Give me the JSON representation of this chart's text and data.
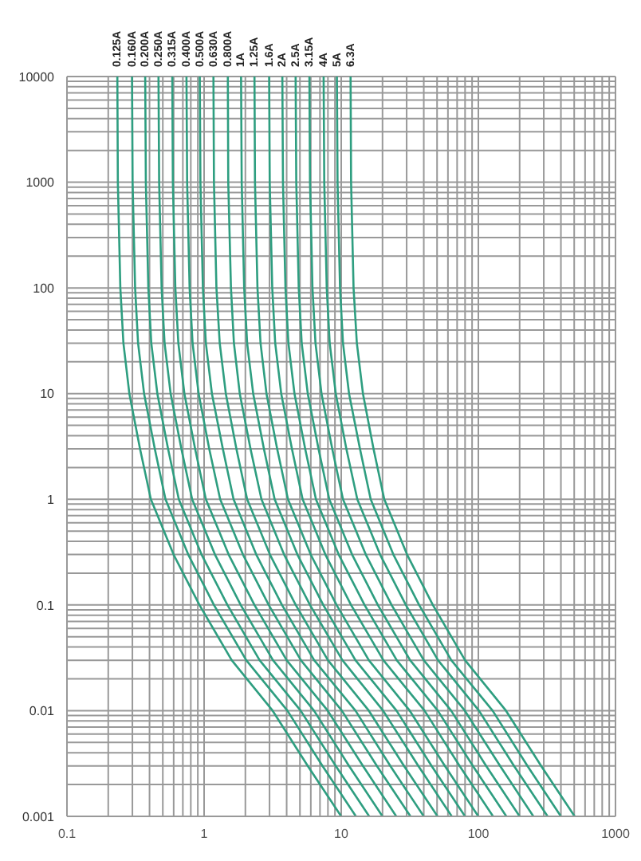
{
  "chart_data": {
    "type": "line",
    "log": "xy",
    "grid": true,
    "xlim": [
      0.1,
      1000
    ],
    "ylim": [
      0.001,
      10000
    ],
    "xticks": [
      0.1,
      {
        "value": 0.2,
        "label": null
      },
      {
        "value": 0.3,
        "label": null
      },
      {
        "value": 0.4,
        "label": null
      },
      {
        "value": 0.5,
        "label": null
      },
      {
        "value": 0.6,
        "label": null
      },
      {
        "value": 0.7,
        "label": null
      },
      {
        "value": 0.8,
        "label": null
      },
      {
        "value": 0.9,
        "label": null
      },
      1,
      {
        "value": 2,
        "label": null
      },
      {
        "value": 3,
        "label": null
      },
      {
        "value": 4,
        "label": null
      },
      {
        "value": 5,
        "label": null
      },
      {
        "value": 6,
        "label": null
      },
      {
        "value": 7,
        "label": null
      },
      {
        "value": 8,
        "label": null
      },
      {
        "value": 9,
        "label": null
      },
      10,
      {
        "value": 20,
        "label": null
      },
      {
        "value": 30,
        "label": null
      },
      {
        "value": 40,
        "label": null
      },
      {
        "value": 50,
        "label": null
      },
      {
        "value": 60,
        "label": null
      },
      {
        "value": 70,
        "label": null
      },
      {
        "value": 80,
        "label": null
      },
      {
        "value": 90,
        "label": null
      },
      100,
      {
        "value": 200,
        "label": null
      },
      {
        "value": 300,
        "label": null
      },
      {
        "value": 400,
        "label": null
      },
      {
        "value": 500,
        "label": null
      },
      {
        "value": 600,
        "label": null
      },
      {
        "value": 700,
        "label": null
      },
      {
        "value": 800,
        "label": null
      },
      {
        "value": 900,
        "label": null
      },
      1000
    ],
    "yticks": [
      0.001,
      {
        "value": 0.002,
        "label": null
      },
      {
        "value": 0.003,
        "label": null
      },
      {
        "value": 0.004,
        "label": null
      },
      {
        "value": 0.005,
        "label": null
      },
      {
        "value": 0.006,
        "label": null
      },
      {
        "value": 0.007,
        "label": null
      },
      {
        "value": 0.008,
        "label": null
      },
      {
        "value": 0.009,
        "label": null
      },
      0.01,
      {
        "value": 0.02,
        "label": null
      },
      {
        "value": 0.03,
        "label": null
      },
      {
        "value": 0.04,
        "label": null
      },
      {
        "value": 0.05,
        "label": null
      },
      {
        "value": 0.06,
        "label": null
      },
      {
        "value": 0.07,
        "label": null
      },
      {
        "value": 0.08,
        "label": null
      },
      {
        "value": 0.09,
        "label": null
      },
      0.1,
      {
        "value": 0.2,
        "label": null
      },
      {
        "value": 0.3,
        "label": null
      },
      {
        "value": 0.4,
        "label": null
      },
      {
        "value": 0.5,
        "label": null
      },
      {
        "value": 0.6,
        "label": null
      },
      {
        "value": 0.7,
        "label": null
      },
      {
        "value": 0.8,
        "label": null
      },
      {
        "value": 0.9,
        "label": null
      },
      1,
      {
        "value": 2,
        "label": null
      },
      {
        "value": 3,
        "label": null
      },
      {
        "value": 4,
        "label": null
      },
      {
        "value": 5,
        "label": null
      },
      {
        "value": 6,
        "label": null
      },
      {
        "value": 7,
        "label": null
      },
      {
        "value": 8,
        "label": null
      },
      {
        "value": 9,
        "label": null
      },
      10,
      {
        "value": 20,
        "label": null
      },
      {
        "value": 30,
        "label": null
      },
      {
        "value": 40,
        "label": null
      },
      {
        "value": 50,
        "label": null
      },
      {
        "value": 60,
        "label": null
      },
      {
        "value": 70,
        "label": null
      },
      {
        "value": 80,
        "label": null
      },
      {
        "value": 90,
        "label": null
      },
      100,
      {
        "value": 200,
        "label": null
      },
      {
        "value": 300,
        "label": null
      },
      {
        "value": 400,
        "label": null
      },
      {
        "value": 500,
        "label": null
      },
      {
        "value": 600,
        "label": null
      },
      {
        "value": 700,
        "label": null
      },
      {
        "value": 800,
        "label": null
      },
      {
        "value": 900,
        "label": null
      },
      1000,
      {
        "value": 2000,
        "label": null
      },
      {
        "value": 3000,
        "label": null
      },
      {
        "value": 4000,
        "label": null
      },
      {
        "value": 5000,
        "label": null
      },
      {
        "value": 6000,
        "label": null
      },
      {
        "value": 7000,
        "label": null
      },
      {
        "value": 8000,
        "label": null
      },
      {
        "value": 9000,
        "label": null
      },
      10000
    ],
    "series": [
      {
        "name": "0.125A",
        "color": "#2e9e80",
        "x": [
          0.233,
          0.235,
          0.245,
          0.258,
          0.285,
          0.341,
          0.409,
          0.599,
          0.925,
          1.59,
          3.16,
          5.7,
          10.0
        ],
        "values": [
          10000,
          1000,
          100,
          30,
          10,
          3,
          1,
          0.3,
          0.1,
          0.03,
          0.01,
          0.003,
          0.001
        ]
      },
      {
        "name": "0.160A",
        "color": "#2e9e80",
        "x": [
          0.298,
          0.301,
          0.314,
          0.33,
          0.365,
          0.437,
          0.523,
          0.766,
          1.18,
          2.03,
          4.05,
          7.3,
          12.8
        ],
        "values": [
          10000,
          1000,
          100,
          30,
          10,
          3,
          1,
          0.3,
          0.1,
          0.03,
          0.01,
          0.003,
          0.001
        ]
      },
      {
        "name": "0.200A",
        "color": "#2e9e80",
        "x": [
          0.372,
          0.376,
          0.392,
          0.412,
          0.456,
          0.546,
          0.654,
          0.958,
          1.48,
          2.54,
          5.06,
          9.12,
          16.0
        ],
        "values": [
          10000,
          1000,
          100,
          30,
          10,
          3,
          1,
          0.3,
          0.1,
          0.03,
          0.01,
          0.003,
          0.001
        ]
      },
      {
        "name": "0.250A",
        "color": "#2e9e80",
        "x": [
          0.465,
          0.47,
          0.49,
          0.515,
          0.57,
          0.683,
          0.818,
          1.2,
          1.85,
          3.18,
          6.33,
          11.4,
          20.0
        ],
        "values": [
          10000,
          1000,
          100,
          30,
          10,
          3,
          1,
          0.3,
          0.1,
          0.03,
          0.01,
          0.003,
          0.001
        ]
      },
      {
        "name": "0.315A",
        "color": "#2e9e80",
        "x": [
          0.586,
          0.592,
          0.617,
          0.649,
          0.718,
          0.86,
          1.03,
          1.51,
          2.33,
          4.0,
          7.97,
          14.4,
          25.2
        ],
        "values": [
          10000,
          1000,
          100,
          30,
          10,
          3,
          1,
          0.3,
          0.1,
          0.03,
          0.01,
          0.003,
          0.001
        ]
      },
      {
        "name": "0.400A",
        "color": "#2e9e80",
        "x": [
          0.744,
          0.752,
          0.784,
          0.824,
          0.912,
          1.09,
          1.31,
          1.92,
          2.96,
          5.08,
          10.1,
          18.2,
          32.0
        ],
        "values": [
          10000,
          1000,
          100,
          30,
          10,
          3,
          1,
          0.3,
          0.1,
          0.03,
          0.01,
          0.003,
          0.001
        ]
      },
      {
        "name": "0.500A",
        "color": "#2e9e80",
        "x": [
          0.93,
          0.94,
          0.98,
          1.03,
          1.14,
          1.37,
          1.64,
          2.4,
          3.7,
          6.35,
          12.7,
          22.8,
          40.0
        ],
        "values": [
          10000,
          1000,
          100,
          30,
          10,
          3,
          1,
          0.3,
          0.1,
          0.03,
          0.01,
          0.003,
          0.001
        ]
      },
      {
        "name": "0.630A",
        "color": "#2e9e80",
        "x": [
          1.17,
          1.18,
          1.23,
          1.3,
          1.44,
          1.72,
          2.06,
          3.02,
          4.66,
          8.0,
          15.9,
          28.7,
          50.4
        ],
        "values": [
          10000,
          1000,
          100,
          30,
          10,
          3,
          1,
          0.3,
          0.1,
          0.03,
          0.01,
          0.003,
          0.001
        ]
      },
      {
        "name": "0.800A",
        "color": "#2e9e80",
        "x": [
          1.49,
          1.5,
          1.57,
          1.65,
          1.82,
          2.18,
          2.62,
          3.83,
          5.92,
          10.2,
          20.2,
          36.5,
          64.0
        ],
        "values": [
          10000,
          1000,
          100,
          30,
          10,
          3,
          1,
          0.3,
          0.1,
          0.03,
          0.01,
          0.003,
          0.001
        ]
      },
      {
        "name": "1A",
        "color": "#2e9e80",
        "x": [
          1.86,
          1.88,
          1.96,
          2.06,
          2.28,
          2.73,
          3.27,
          4.79,
          7.4,
          12.7,
          25.3,
          45.6,
          80.0
        ],
        "values": [
          10000,
          1000,
          100,
          30,
          10,
          3,
          1,
          0.3,
          0.1,
          0.03,
          0.01,
          0.003,
          0.001
        ]
      },
      {
        "name": "1.25A",
        "color": "#2e9e80",
        "x": [
          2.33,
          2.35,
          2.45,
          2.58,
          2.85,
          3.41,
          4.09,
          5.99,
          9.25,
          15.9,
          31.6,
          57.0,
          100
        ],
        "values": [
          10000,
          1000,
          100,
          30,
          10,
          3,
          1,
          0.3,
          0.1,
          0.03,
          0.01,
          0.003,
          0.001
        ]
      },
      {
        "name": "1.6A",
        "color": "#2e9e80",
        "x": [
          2.98,
          3.01,
          3.14,
          3.3,
          3.65,
          4.37,
          5.23,
          7.66,
          11.8,
          20.3,
          40.5,
          73.0,
          128
        ],
        "values": [
          10000,
          1000,
          100,
          30,
          10,
          3,
          1,
          0.3,
          0.1,
          0.03,
          0.01,
          0.003,
          0.001
        ]
      },
      {
        "name": "2A",
        "color": "#2e9e80",
        "x": [
          3.72,
          3.76,
          3.92,
          4.12,
          4.56,
          5.46,
          6.54,
          9.58,
          14.8,
          25.4,
          50.6,
          91.2,
          160
        ],
        "values": [
          10000,
          1000,
          100,
          30,
          10,
          3,
          1,
          0.3,
          0.1,
          0.03,
          0.01,
          0.003,
          0.001
        ]
      },
      {
        "name": "2.5A",
        "color": "#2e9e80",
        "x": [
          4.65,
          4.7,
          4.9,
          5.15,
          5.7,
          6.83,
          8.18,
          12.0,
          18.5,
          31.8,
          63.3,
          114,
          200
        ],
        "values": [
          10000,
          1000,
          100,
          30,
          10,
          3,
          1,
          0.3,
          0.1,
          0.03,
          0.01,
          0.003,
          0.001
        ]
      },
      {
        "name": "3.15A",
        "color": "#2e9e80",
        "x": [
          5.86,
          5.92,
          6.17,
          6.49,
          7.18,
          8.6,
          10.3,
          15.1,
          23.3,
          40.0,
          79.7,
          144,
          252
        ],
        "values": [
          10000,
          1000,
          100,
          30,
          10,
          3,
          1,
          0.3,
          0.1,
          0.03,
          0.01,
          0.003,
          0.001
        ]
      },
      {
        "name": "4A",
        "color": "#2e9e80",
        "x": [
          7.44,
          7.52,
          7.84,
          8.24,
          9.12,
          10.9,
          13.1,
          19.2,
          29.6,
          50.8,
          101,
          182,
          320
        ],
        "values": [
          10000,
          1000,
          100,
          30,
          10,
          3,
          1,
          0.3,
          0.1,
          0.03,
          0.01,
          0.003,
          0.001
        ]
      },
      {
        "name": "5A",
        "color": "#2e9e80",
        "x": [
          9.3,
          9.4,
          9.8,
          10.3,
          11.4,
          13.7,
          16.4,
          24.0,
          37.0,
          63.5,
          127,
          228,
          400
        ],
        "values": [
          10000,
          1000,
          100,
          30,
          10,
          3,
          1,
          0.3,
          0.1,
          0.03,
          0.01,
          0.003,
          0.001
        ]
      },
      {
        "name": "6.3A",
        "color": "#2e9e80",
        "x": [
          11.7,
          11.8,
          12.3,
          13.0,
          14.4,
          17.2,
          20.6,
          30.2,
          46.6,
          80.0,
          159,
          287,
          504
        ],
        "values": [
          10000,
          1000,
          100,
          30,
          10,
          3,
          1,
          0.3,
          0.1,
          0.03,
          0.01,
          0.003,
          0.001
        ]
      }
    ]
  }
}
